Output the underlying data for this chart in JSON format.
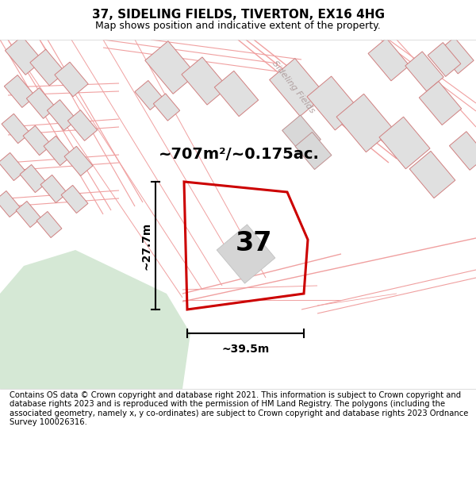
{
  "title": "37, SIDELING FIELDS, TIVERTON, EX16 4HG",
  "subtitle": "Map shows position and indicative extent of the property.",
  "footer": "Contains OS data © Crown copyright and database right 2021. This information is subject to Crown copyright and database rights 2023 and is reproduced with the permission of HM Land Registry. The polygons (including the associated geometry, namely x, y co-ordinates) are subject to Crown copyright and database rights 2023 Ordnance Survey 100026316.",
  "area_label": "~707m²/~0.175ac.",
  "number_label": "37",
  "dim_width": "~39.5m",
  "dim_height": "~27.7m",
  "street_label": "Sideling Fields",
  "bg_color": "#ffffff",
  "map_bg": "#fafafa",
  "green_color": "#d5e8d5",
  "plot_color": "#cc0000",
  "road_color": "#f0a0a0",
  "bld_fill": "#e0e0e0",
  "bld_edge": "#d08080",
  "title_fontsize": 11,
  "subtitle_fontsize": 9,
  "footer_fontsize": 7.2,
  "area_fontsize": 14,
  "number_fontsize": 24,
  "dim_fontsize": 10,
  "street_fontsize": 8
}
